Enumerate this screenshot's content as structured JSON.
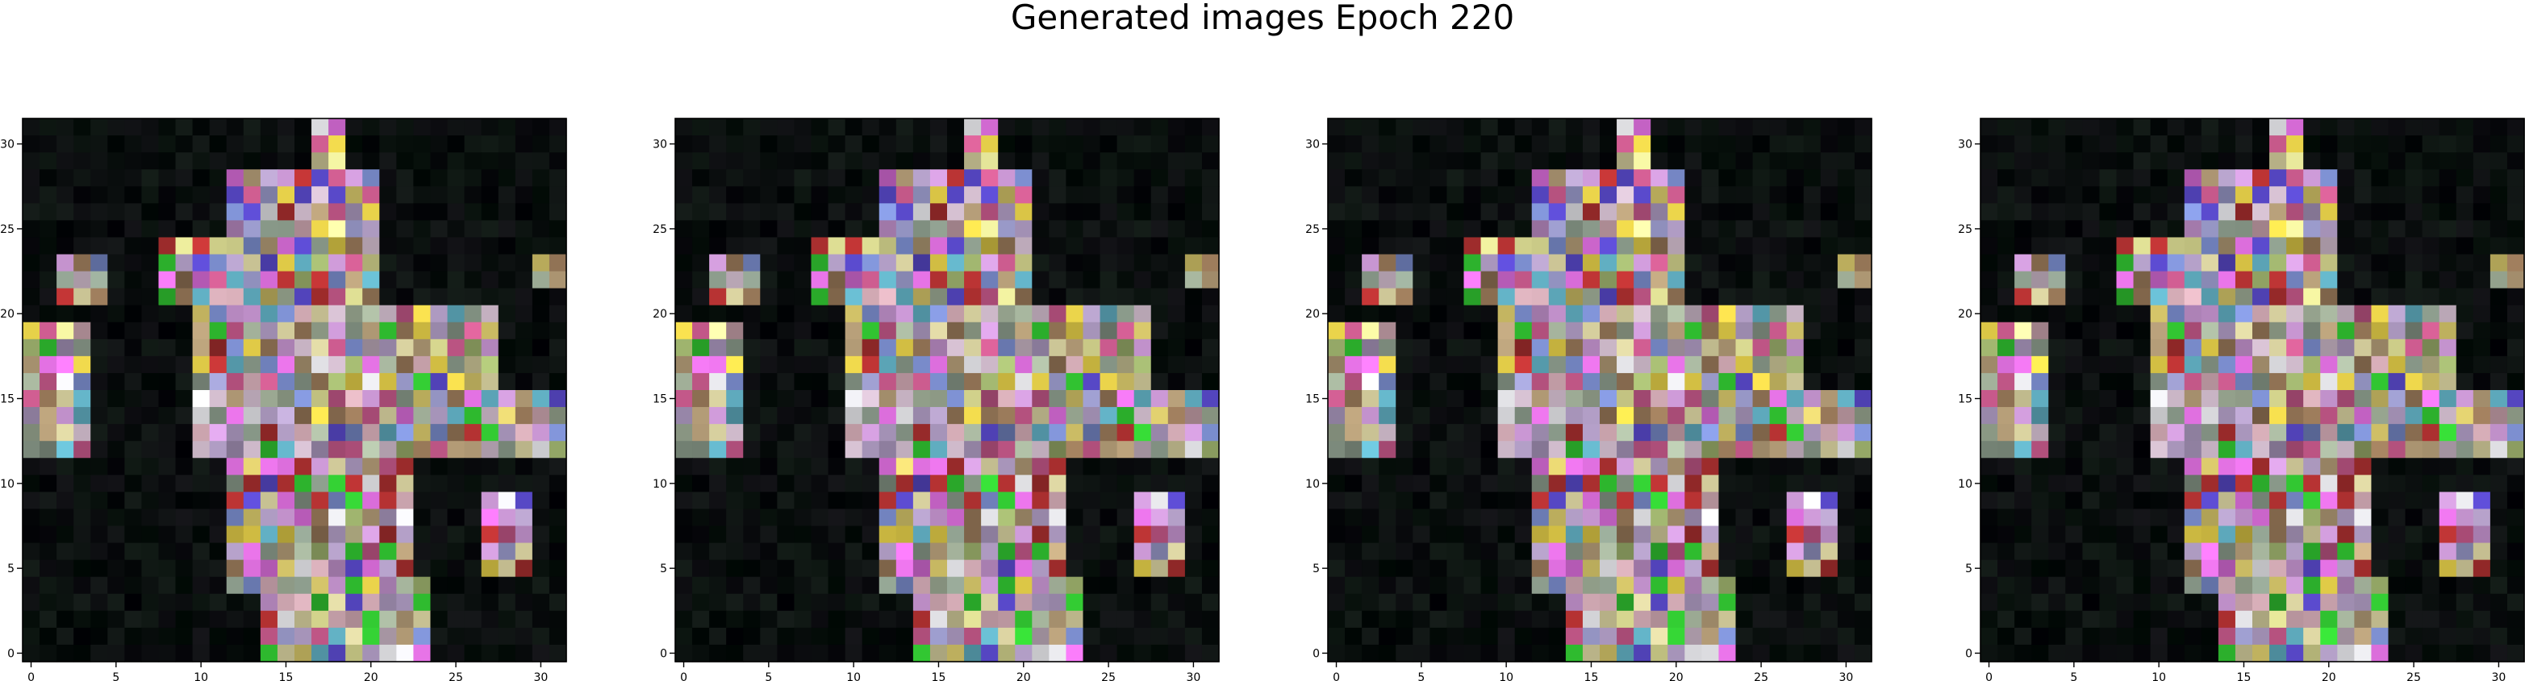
{
  "figure": {
    "title": "Generated images Epoch 220"
  },
  "chart_data": [
    {
      "type": "heatmap",
      "panel": 1,
      "xlim": [
        -0.5,
        31.5
      ],
      "ylim": [
        31.5,
        -0.5
      ],
      "xticks": [
        0,
        5,
        10,
        15,
        20,
        25,
        30
      ],
      "yticks": [
        0,
        5,
        10,
        15,
        20,
        25,
        30
      ],
      "grid": false,
      "title": "",
      "xlabel": "",
      "ylabel": ""
    },
    {
      "type": "heatmap",
      "panel": 2,
      "xlim": [
        -0.5,
        31.5
      ],
      "ylim": [
        31.5,
        -0.5
      ],
      "xticks": [
        0,
        5,
        10,
        15,
        20,
        25,
        30
      ],
      "yticks": [
        0,
        5,
        10,
        15,
        20,
        25,
        30
      ],
      "grid": false,
      "title": "",
      "xlabel": "",
      "ylabel": ""
    },
    {
      "type": "heatmap",
      "panel": 3,
      "xlim": [
        -0.5,
        31.5
      ],
      "ylim": [
        31.5,
        -0.5
      ],
      "xticks": [
        0,
        5,
        10,
        15,
        20,
        25,
        30
      ],
      "yticks": [
        0,
        5,
        10,
        15,
        20,
        25,
        30
      ],
      "grid": false,
      "title": "",
      "xlabel": "",
      "ylabel": ""
    },
    {
      "type": "heatmap",
      "panel": 4,
      "xlim": [
        -0.5,
        31.5
      ],
      "ylim": [
        31.5,
        -0.5
      ],
      "xticks": [
        0,
        5,
        10,
        15,
        20,
        25,
        30
      ],
      "yticks": [
        0,
        5,
        10,
        15,
        20,
        25,
        30
      ],
      "grid": false,
      "title": "",
      "xlabel": "",
      "ylabel": ""
    }
  ],
  "colors": {
    "background": "#000000",
    "palette": [
      "#c8b4c4",
      "#a9b8a0",
      "#d9d2a0",
      "#b4a0c8",
      "#9cb06c",
      "#d6c66a",
      "#c896d2",
      "#a0a0d2",
      "#e6e6ea",
      "#b8a07a",
      "#8c9c8c",
      "#d2aab4",
      "#e8d24a",
      "#7a8ccc",
      "#c85a8c",
      "#b43232",
      "#f0f0a0",
      "#5a4acc",
      "#32c832",
      "#64b4c8",
      "#9a7a5a",
      "#e070e0"
    ]
  }
}
